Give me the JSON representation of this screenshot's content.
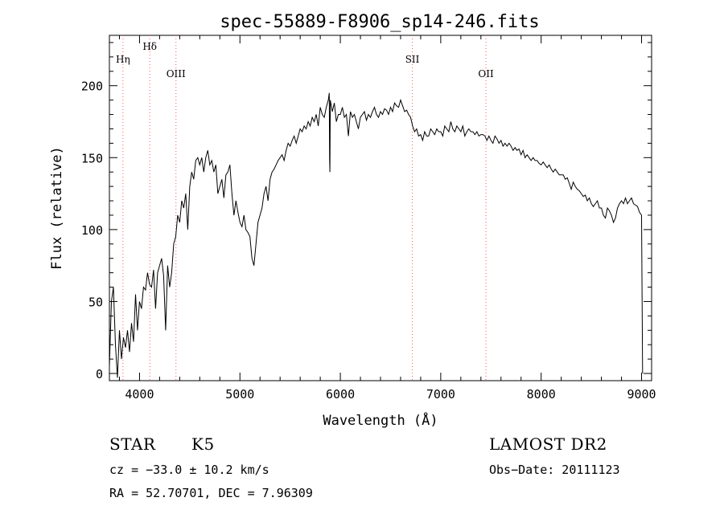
{
  "chart_data": {
    "type": "line",
    "title": "spec-55889-F8906_sp14-246.fits",
    "xlabel": "Wavelength (Å)",
    "ylabel": "Flux (relative)",
    "xlim": [
      3700,
      9100
    ],
    "ylim": [
      -5,
      235
    ],
    "xticks": [
      4000,
      5000,
      6000,
      7000,
      8000,
      9000
    ],
    "yticks": [
      0,
      50,
      100,
      150,
      200
    ],
    "grid": false,
    "line_color": "#000000",
    "marker_color": "#ff5555",
    "lines": [
      {
        "label": "Hη",
        "wavelength": 3835,
        "row": "low"
      },
      {
        "label": "Hδ",
        "wavelength": 4102,
        "row": "high"
      },
      {
        "label": "OIII",
        "wavelength": 4363,
        "row": "mid"
      },
      {
        "label": "SII",
        "wavelength": 6717,
        "row": "low"
      },
      {
        "label": "OII",
        "wavelength": 7450,
        "row": "mid"
      }
    ],
    "series": [
      {
        "x": [
          3700,
          3720,
          3740,
          3760,
          3780,
          3800,
          3820,
          3840,
          3860,
          3880,
          3900,
          3920,
          3940,
          3960,
          3980,
          4000,
          4020,
          4040,
          4060,
          4080,
          4100,
          4120,
          4140,
          4160,
          4180,
          4200,
          4220,
          4240,
          4260,
          4280,
          4300,
          4320,
          4340,
          4360,
          4380,
          4400,
          4420,
          4440,
          4460,
          4480,
          4500,
          4520,
          4540,
          4560,
          4580,
          4600,
          4620,
          4640,
          4660,
          4680,
          4700,
          4720,
          4740,
          4760,
          4780,
          4800,
          4820,
          4840,
          4860,
          4880,
          4900,
          4920,
          4940,
          4960,
          4980,
          5000,
          5020,
          5040,
          5060,
          5080,
          5100,
          5120,
          5140,
          5160,
          5180,
          5200,
          5220,
          5240,
          5260,
          5280,
          5300,
          5320,
          5340,
          5360,
          5380,
          5400,
          5420,
          5440,
          5460,
          5480,
          5500,
          5520,
          5540,
          5560,
          5580,
          5600,
          5620,
          5640,
          5660,
          5680,
          5700,
          5720,
          5740,
          5760,
          5780,
          5800,
          5820,
          5840,
          5860,
          5880,
          5890,
          5893,
          5896,
          5900,
          5920,
          5940,
          5960,
          5980,
          6000,
          6020,
          6040,
          6060,
          6080,
          6100,
          6120,
          6140,
          6160,
          6180,
          6200,
          6220,
          6240,
          6260,
          6280,
          6300,
          6320,
          6340,
          6360,
          6380,
          6400,
          6420,
          6440,
          6460,
          6480,
          6500,
          6520,
          6540,
          6560,
          6580,
          6600,
          6620,
          6640,
          6660,
          6680,
          6700,
          6720,
          6740,
          6760,
          6780,
          6800,
          6820,
          6840,
          6860,
          6880,
          6900,
          6920,
          6940,
          6960,
          6980,
          7000,
          7020,
          7040,
          7060,
          7080,
          7100,
          7120,
          7140,
          7160,
          7180,
          7200,
          7220,
          7240,
          7260,
          7280,
          7300,
          7320,
          7340,
          7360,
          7380,
          7400,
          7420,
          7440,
          7460,
          7480,
          7500,
          7520,
          7540,
          7560,
          7580,
          7600,
          7620,
          7640,
          7660,
          7680,
          7700,
          7720,
          7740,
          7760,
          7780,
          7800,
          7820,
          7840,
          7860,
          7880,
          7900,
          7920,
          7940,
          7960,
          7980,
          8000,
          8020,
          8040,
          8060,
          8080,
          8100,
          8120,
          8140,
          8160,
          8180,
          8200,
          8220,
          8240,
          8260,
          8280,
          8300,
          8320,
          8340,
          8360,
          8380,
          8400,
          8420,
          8440,
          8460,
          8480,
          8500,
          8520,
          8540,
          8560,
          8580,
          8600,
          8620,
          8640,
          8660,
          8680,
          8700,
          8720,
          8740,
          8760,
          8780,
          8800,
          8820,
          8840,
          8860,
          8880,
          8900,
          8920,
          8940,
          8960,
          8980,
          9000,
          9010
        ],
        "y": [
          5,
          50,
          60,
          20,
          -3,
          30,
          10,
          25,
          18,
          30,
          15,
          35,
          22,
          55,
          30,
          50,
          45,
          60,
          58,
          70,
          62,
          60,
          72,
          45,
          70,
          75,
          80,
          68,
          30,
          75,
          60,
          70,
          90,
          95,
          110,
          105,
          120,
          115,
          125,
          100,
          130,
          140,
          135,
          148,
          150,
          145,
          150,
          140,
          150,
          155,
          145,
          148,
          140,
          145,
          125,
          130,
          135,
          122,
          138,
          140,
          145,
          125,
          110,
          120,
          112,
          105,
          102,
          110,
          100,
          98,
          95,
          80,
          75,
          90,
          105,
          110,
          115,
          125,
          130,
          120,
          135,
          140,
          142,
          145,
          148,
          150,
          152,
          148,
          155,
          160,
          158,
          162,
          165,
          160,
          165,
          170,
          168,
          172,
          170,
          175,
          172,
          178,
          175,
          180,
          172,
          185,
          180,
          178,
          185,
          190,
          195,
          150,
          140,
          190,
          182,
          188,
          175,
          180,
          180,
          185,
          178,
          180,
          165,
          182,
          178,
          180,
          175,
          170,
          178,
          180,
          182,
          176,
          180,
          178,
          182,
          185,
          180,
          178,
          182,
          180,
          184,
          183,
          180,
          185,
          182,
          188,
          186,
          185,
          190,
          186,
          182,
          183,
          180,
          178,
          172,
          168,
          170,
          165,
          166,
          162,
          168,
          165,
          165,
          170,
          168,
          166,
          170,
          168,
          168,
          165,
          172,
          170,
          168,
          175,
          170,
          168,
          172,
          170,
          168,
          172,
          165,
          168,
          170,
          168,
          168,
          166,
          168,
          165,
          166,
          166,
          165,
          162,
          165,
          162,
          160,
          165,
          163,
          160,
          162,
          158,
          160,
          158,
          160,
          158,
          155,
          157,
          155,
          156,
          152,
          155,
          150,
          152,
          150,
          148,
          150,
          148,
          148,
          146,
          145,
          147,
          145,
          143,
          145,
          142,
          140,
          142,
          140,
          138,
          138,
          138,
          135,
          136,
          132,
          128,
          133,
          130,
          128,
          127,
          125,
          123,
          124,
          120,
          122,
          118,
          116,
          118,
          120,
          115,
          115,
          110,
          108,
          115,
          113,
          110,
          105,
          108,
          115,
          118,
          120,
          118,
          122,
          118,
          120,
          122,
          118,
          117,
          116,
          112,
          110,
          0
        ]
      }
    ]
  },
  "info": {
    "object_class": "STAR",
    "subclass": "K5",
    "survey": "LAMOST DR2",
    "cz": "cz = −33.0 ± 10.2 km/s",
    "obs_date": "Obs−Date: 20111123",
    "coords": "RA =  52.70701, DEC =   7.96309"
  }
}
